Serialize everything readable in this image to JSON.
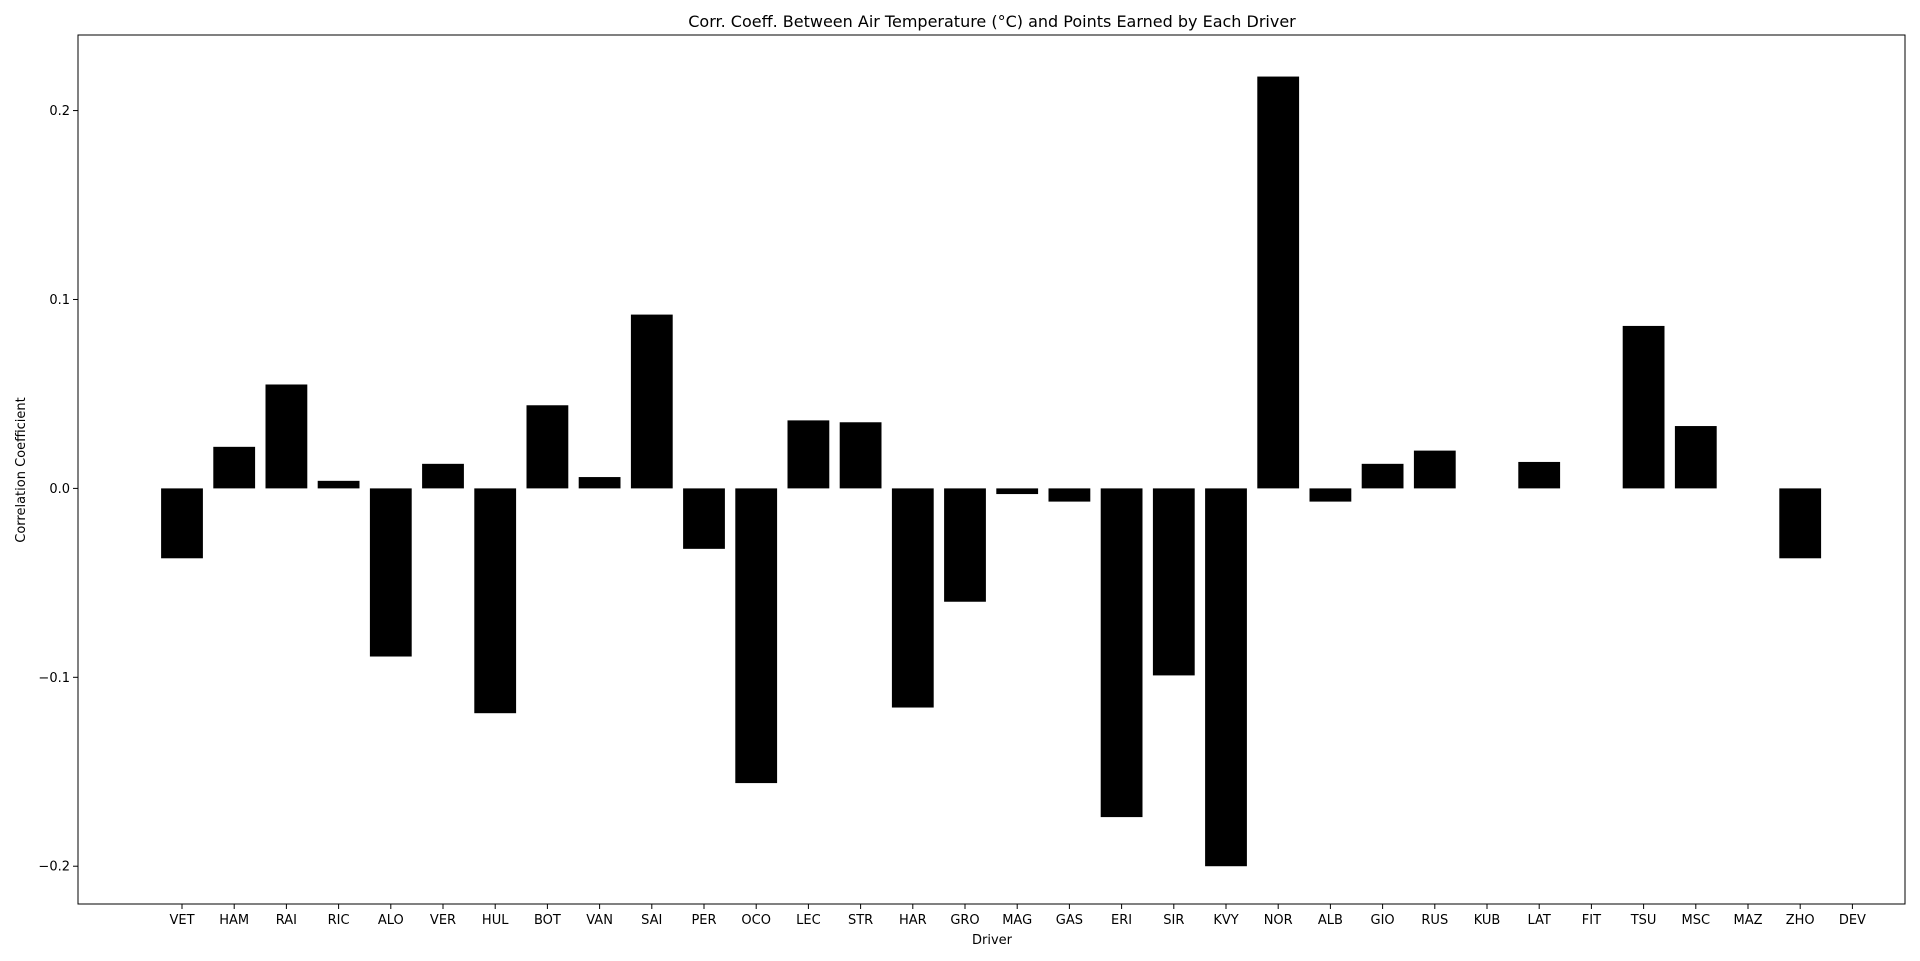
{
  "chart_data": {
    "type": "bar",
    "title": "Corr. Coeff. Between Air Temperature (°C) and Points Earned by Each Driver",
    "xlabel": "Driver",
    "ylabel": "Correlation Coefficient",
    "categories": [
      "VET",
      "HAM",
      "RAI",
      "RIC",
      "ALO",
      "VER",
      "HUL",
      "BOT",
      "VAN",
      "SAI",
      "PER",
      "OCO",
      "LEC",
      "STR",
      "HAR",
      "GRO",
      "MAG",
      "GAS",
      "ERI",
      "SIR",
      "KVY",
      "NOR",
      "ALB",
      "GIO",
      "RUS",
      "KUB",
      "LAT",
      "FIT",
      "TSU",
      "MSC",
      "MAZ",
      "ZHO",
      "DEV"
    ],
    "values": [
      -0.037,
      0.022,
      0.055,
      0.004,
      -0.089,
      0.013,
      -0.119,
      0.044,
      0.006,
      0.092,
      -0.032,
      -0.156,
      0.036,
      0.035,
      -0.116,
      -0.06,
      -0.003,
      -0.007,
      -0.174,
      -0.099,
      -0.2,
      0.218,
      -0.007,
      0.013,
      0.02,
      0.0,
      0.014,
      0.0,
      0.086,
      0.033,
      0.0,
      -0.037,
      0.0
    ],
    "ylim": [
      -0.22,
      0.24
    ],
    "yticks": [
      -0.2,
      -0.1,
      0.0,
      0.1,
      0.2
    ],
    "ytick_labels": [
      "−0.2",
      "−0.1",
      "0.0",
      "0.1",
      "0.2"
    ],
    "grid": false,
    "legend": "none",
    "bar_color": "#000000"
  }
}
